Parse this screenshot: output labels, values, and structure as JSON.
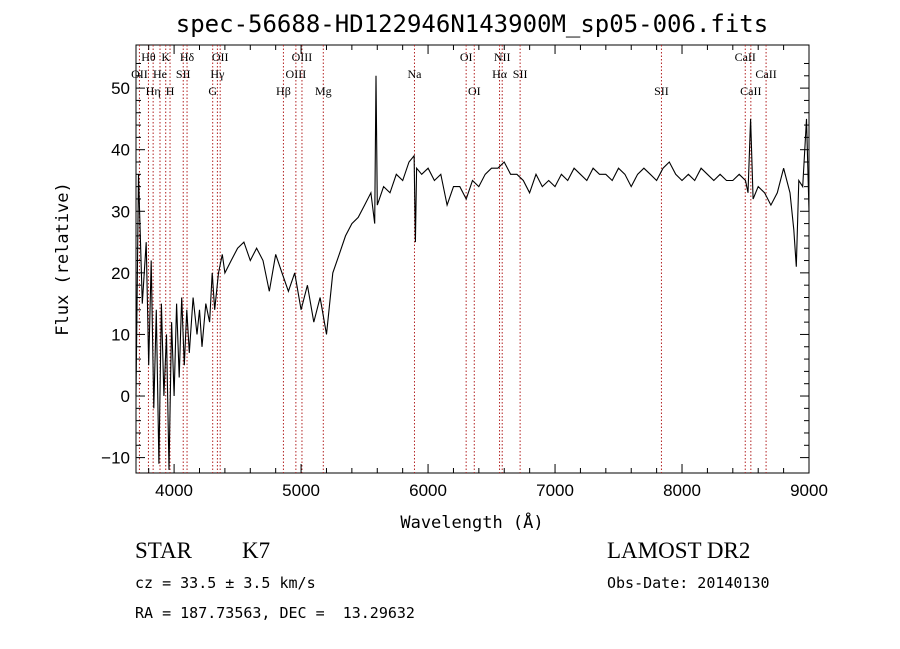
{
  "chart_data": {
    "type": "line",
    "title": "spec-56688-HD122946N143900M_sp05-006.fits",
    "xlabel": "Wavelength (Å)",
    "ylabel": "Flux (relative)",
    "xlim": [
      3700,
      9000
    ],
    "ylim": [
      -12.5,
      57
    ],
    "xticks": [
      "4000",
      "5000",
      "6000",
      "7000",
      "8000",
      "9000"
    ],
    "yticks": [
      "−10",
      "0",
      "10",
      "20",
      "30",
      "40",
      "50"
    ],
    "xtick_values": [
      4000,
      5000,
      6000,
      7000,
      8000,
      9000
    ],
    "ytick_values": [
      -10,
      0,
      10,
      20,
      30,
      40,
      50
    ],
    "series": [
      {
        "x": [
          3700,
          3720,
          3750,
          3780,
          3800,
          3820,
          3840,
          3860,
          3880,
          3900,
          3920,
          3940,
          3960,
          3980,
          4000,
          4020,
          4040,
          4060,
          4080,
          4100,
          4120,
          4150,
          4180,
          4200,
          4220,
          4250,
          4280,
          4300,
          4320,
          4350,
          4380,
          4400,
          4450,
          4500,
          4550,
          4600,
          4650,
          4700,
          4750,
          4800,
          4850,
          4900,
          4950,
          5000,
          5050,
          5100,
          5150,
          5200,
          5250,
          5300,
          5350,
          5400,
          5450,
          5500,
          5550,
          5580,
          5590,
          5600,
          5650,
          5700,
          5750,
          5800,
          5850,
          5890,
          5900,
          5910,
          5950,
          6000,
          6050,
          6100,
          6150,
          6200,
          6250,
          6300,
          6350,
          6400,
          6450,
          6500,
          6550,
          6600,
          6650,
          6700,
          6750,
          6800,
          6850,
          6900,
          6950,
          7000,
          7050,
          7100,
          7150,
          7200,
          7250,
          7300,
          7350,
          7400,
          7450,
          7500,
          7550,
          7600,
          7650,
          7700,
          7750,
          7800,
          7850,
          7900,
          7950,
          8000,
          8050,
          8100,
          8150,
          8200,
          8250,
          8300,
          8350,
          8400,
          8450,
          8500,
          8520,
          8540,
          8560,
          8600,
          8650,
          8700,
          8750,
          8800,
          8850,
          8880,
          8900,
          8920,
          8950,
          8980,
          9000
        ],
        "y": [
          0,
          36,
          15,
          25,
          5,
          22,
          -2,
          14,
          -11,
          15,
          0,
          10,
          -12,
          12,
          0,
          15,
          3,
          16,
          5,
          14,
          7,
          16,
          10,
          14,
          8,
          15,
          12,
          20,
          14,
          20,
          23,
          20,
          22,
          24,
          25,
          22,
          24,
          22,
          17,
          23,
          20,
          17,
          20,
          14,
          18,
          12,
          16,
          10,
          20,
          23,
          26,
          28,
          29,
          31,
          33,
          28,
          52,
          31,
          34,
          33,
          36,
          35,
          38,
          39,
          25,
          37,
          36,
          37,
          35,
          36,
          31,
          34,
          34,
          32,
          35,
          34,
          36,
          37,
          37,
          38,
          36,
          36,
          35,
          33,
          36,
          34,
          35,
          34,
          36,
          35,
          37,
          36,
          35,
          37,
          36,
          36,
          35,
          37,
          36,
          34,
          36,
          37,
          36,
          35,
          37,
          38,
          36,
          35,
          36,
          35,
          37,
          36,
          35,
          36,
          35,
          35,
          36,
          35,
          33,
          45,
          32,
          34,
          33,
          31,
          33,
          37,
          33,
          27,
          21,
          35,
          34,
          45,
          30
        ]
      }
    ],
    "lines": [
      {
        "label": "Hθ",
        "wl": 3798,
        "row": 1
      },
      {
        "label": "OII",
        "wl": 3727,
        "row": 2
      },
      {
        "label": "Hη",
        "wl": 3835,
        "row": 3
      },
      {
        "label": "K",
        "wl": 3934,
        "row": 1
      },
      {
        "label": "He",
        "wl": 3889,
        "row": 2
      },
      {
        "label": "H",
        "wl": 3968,
        "row": 3
      },
      {
        "label": "Hδ",
        "wl": 4102,
        "row": 1
      },
      {
        "label": "SII",
        "wl": 4072,
        "row": 2
      },
      {
        "label": "OII",
        "wl": 4363,
        "row": 1
      },
      {
        "label": "Hγ",
        "wl": 4341,
        "row": 2
      },
      {
        "label": "G",
        "wl": 4304,
        "row": 3
      },
      {
        "label": "OIII",
        "wl": 5007,
        "row": 1
      },
      {
        "label": "OIII",
        "wl": 4959,
        "row": 2
      },
      {
        "label": "Hβ",
        "wl": 4861,
        "row": 3
      },
      {
        "label": "Mg",
        "wl": 5175,
        "row": 3
      },
      {
        "label": "Na",
        "wl": 5893,
        "row": 2
      },
      {
        "label": "OI",
        "wl": 6300,
        "row": 1
      },
      {
        "label": "OI",
        "wl": 6364,
        "row": 3
      },
      {
        "label": "NII",
        "wl": 6584,
        "row": 1
      },
      {
        "label": "Hα",
        "wl": 6563,
        "row": 2
      },
      {
        "label": "SII",
        "wl": 6725,
        "row": 2
      },
      {
        "label": "SII",
        "wl": 7838,
        "row": 3
      },
      {
        "label": "CaII",
        "wl": 8498,
        "row": 1
      },
      {
        "label": "CaII",
        "wl": 8662,
        "row": 2
      },
      {
        "label": "CaII",
        "wl": 8542,
        "row": 3
      }
    ],
    "grid": false,
    "legend": "none"
  },
  "info": {
    "object_class": "STAR",
    "subclass": "K7",
    "survey": "LAMOST DR2",
    "redshift": "cz = 33.5 ± 3.5 km/s",
    "obs_date": "Obs-Date: 20140130",
    "coords": "RA = 187.73563, DEC =  13.29632"
  },
  "colors": {
    "line_marker": "#b22222",
    "spectrum": "#000000",
    "axes": "#000000"
  }
}
